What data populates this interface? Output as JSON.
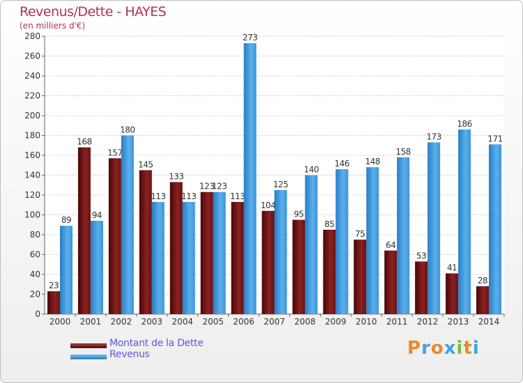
{
  "header": {
    "title": "Revenus/Dette - HAYES",
    "subtitle": "(en milliers d'€)"
  },
  "logo": {
    "letters": [
      "P",
      "r",
      "o",
      "x",
      "i",
      "t",
      "i"
    ],
    "colors": [
      "#e98a2c",
      "#3ca6de",
      "#e98a2c",
      "#3ca6de",
      "#7dbb36",
      "#e98a2c",
      "#3ca6de"
    ]
  },
  "chart_data": {
    "type": "bar",
    "categories": [
      "2000",
      "2001",
      "2002",
      "2003",
      "2004",
      "2005",
      "2006",
      "2007",
      "2008",
      "2009",
      "2010",
      "2011",
      "2012",
      "2013",
      "2014"
    ],
    "series": [
      {
        "name": "Montant de la Dette",
        "color": "#7a1a1a",
        "values": [
          23,
          168,
          157,
          145,
          133,
          123,
          113,
          104,
          95,
          85,
          75,
          64,
          53,
          41,
          28
        ]
      },
      {
        "name": "Revenus",
        "color": "#4ea6e6",
        "values": [
          89,
          94,
          180,
          113,
          113,
          123,
          273,
          125,
          140,
          146,
          148,
          158,
          173,
          186,
          171
        ]
      }
    ],
    "ylim": [
      0,
      280
    ],
    "yticks": [
      0,
      20,
      40,
      60,
      80,
      100,
      120,
      140,
      160,
      180,
      200,
      220,
      240,
      260,
      280
    ],
    "grid": true,
    "legend_position": "bottom-left"
  }
}
